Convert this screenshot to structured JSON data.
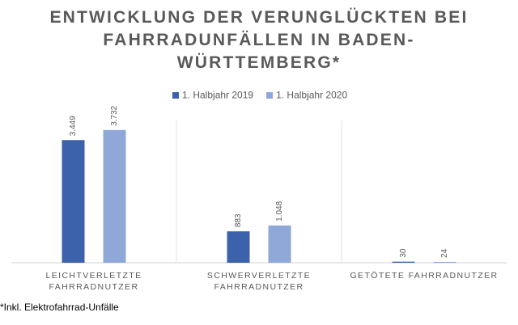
{
  "chart_data": {
    "type": "bar",
    "title": "ENTWICKLUNG DER VERUNGLÜCKTEN BEI FAHRRADUNFÄLLEN IN BADEN-WÜRTTEMBERG*",
    "footnote": "*Inkl. Elektrofahrrad-Unfälle",
    "categories": [
      "LEICHTVERLETZTE FAHRRADNUTZER",
      "SCHWERVERLETZTE FAHRRADNUTZER",
      "GETÖTETE FAHRRADNUTZER"
    ],
    "series": [
      {
        "name": "1. Halbjahr 2019",
        "color": "#3c62ab",
        "values": [
          3449,
          883,
          30
        ],
        "value_labels": [
          "3.449",
          "883",
          "30"
        ]
      },
      {
        "name": "1. Halbjahr 2020",
        "color": "#8fa8d8",
        "values": [
          3732,
          1048,
          24
        ],
        "value_labels": [
          "3.732",
          "1.048",
          "24"
        ]
      }
    ],
    "ylim": [
      0,
      4000
    ],
    "legend": "top"
  }
}
